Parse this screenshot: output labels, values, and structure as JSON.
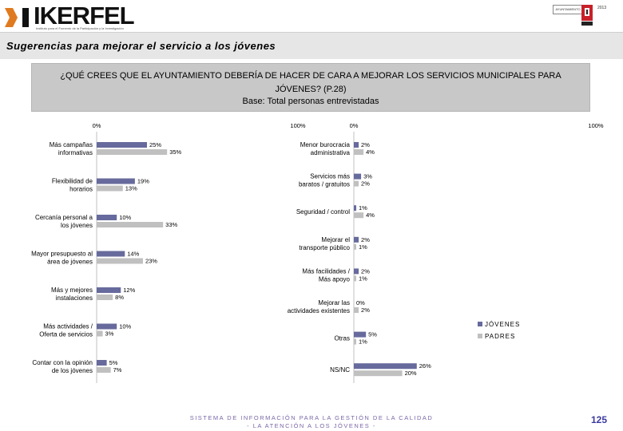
{
  "header": {
    "brand": "IKERFEL",
    "brand_sub": "Instituto para el Fomento de la Participación y la Investigación",
    "crest_label": "AYUNTAMIENTO",
    "crest_year": "2013"
  },
  "title": "Sugerencias para mejorar el servicio a los jóvenes",
  "question": {
    "line1": "¿QUÉ CREES QUE EL AYUNTAMIENTO DEBERÍA DE HACER DE CARA A MEJORAR LOS SERVICIOS MUNICIPALES PARA",
    "line2": "JÓVENES? (P.28)",
    "base": "Base: Total personas entrevistadas"
  },
  "colors": {
    "jovenes": "#676a9c",
    "padres": "#c0c0c0"
  },
  "chart_data": [
    {
      "type": "bar",
      "orientation": "horizontal",
      "axis_min_label": "0%",
      "axis_max_label": "100%",
      "xlim": [
        0,
        100
      ],
      "categories": [
        "Más campañas informativas",
        "Flexibilidad de horarios",
        "Cercanía personal a los jóvenes",
        "Mayor presupuesto al área de jóvenes",
        "Más y mejores instalaciones",
        "Más actividades / Oferta de servicios",
        "Contar con la opinión de los jóvenes"
      ],
      "series": [
        {
          "name": "JÓVENES",
          "values": [
            25,
            19,
            10,
            14,
            12,
            10,
            5
          ]
        },
        {
          "name": "PADRES",
          "values": [
            35,
            13,
            33,
            23,
            8,
            3,
            7
          ]
        }
      ]
    },
    {
      "type": "bar",
      "orientation": "horizontal",
      "axis_min_label": "0%",
      "axis_max_label": "100%",
      "xlim": [
        0,
        100
      ],
      "categories": [
        "Menor burocracia administrativa",
        "Servicios más baratos / gratuitos",
        "Seguridad / control",
        "Mejorar el transporte público",
        "Más facilidades / Más apoyo",
        "Mejorar las actividades existentes",
        "Otras",
        "NS/NC"
      ],
      "series": [
        {
          "name": "JÓVENES",
          "values": [
            2,
            3,
            1,
            2,
            2,
            0,
            5,
            26
          ]
        },
        {
          "name": "PADRES",
          "values": [
            4,
            2,
            4,
            1,
            1,
            2,
            1,
            20
          ]
        }
      ]
    }
  ],
  "legend": {
    "jovenes": "JÓVENES",
    "padres": "PADRES"
  },
  "footer": {
    "line1": "SISTEMA DE INFORMACIÓN PARA LA GESTIÓN DE LA CALIDAD",
    "line2": "- LA ATENCIÓN A LOS JÓVENES -",
    "page": "125"
  }
}
